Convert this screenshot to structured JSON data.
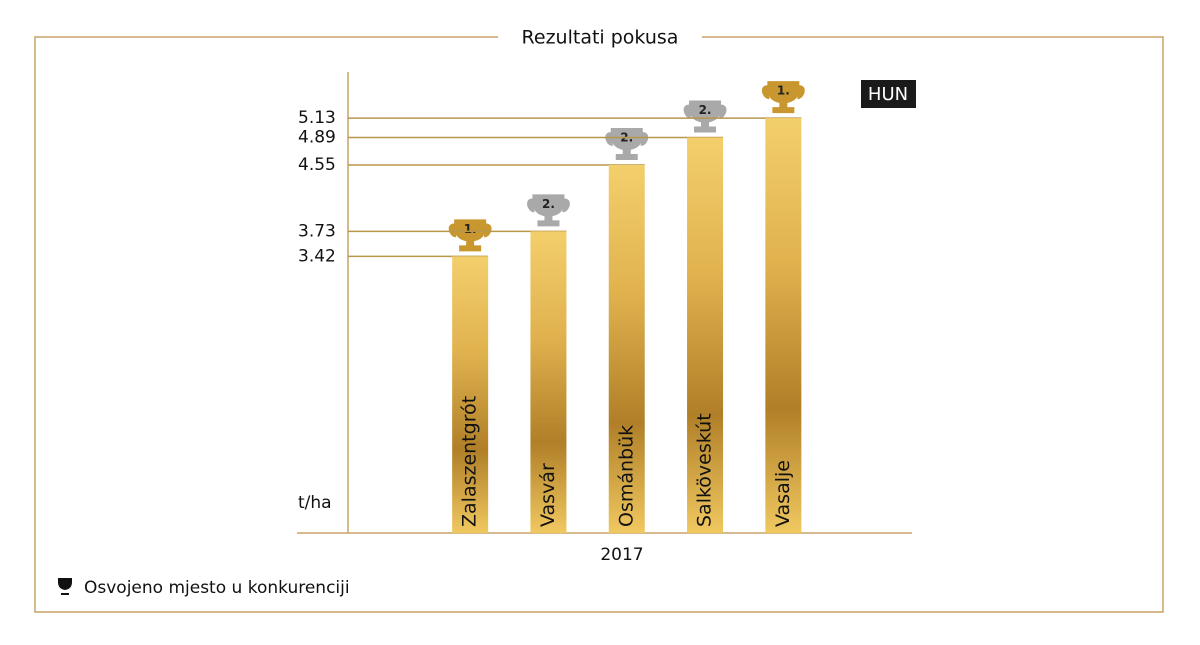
{
  "chart_data": {
    "type": "bar",
    "title": "Rezultati pokusa",
    "badge": "HUN",
    "categories": [
      "Zalaszentgrót",
      "Vasvár",
      "Osmánbük",
      "Salköveskút",
      "Vasalje"
    ],
    "values": [
      3.42,
      3.73,
      4.55,
      4.89,
      5.13
    ],
    "ranks": [
      "1.",
      "2.",
      "2.",
      "2.",
      "1."
    ],
    "rank_colors": {
      "1.": "#c9972f",
      "2.": "#a9a9a9"
    },
    "color": "#d9a940",
    "y_label": "t/ha",
    "x_label": "2017",
    "ylim": [
      0,
      5.7
    ],
    "legend": "Osvojeno mjesto u konkurenciji"
  }
}
